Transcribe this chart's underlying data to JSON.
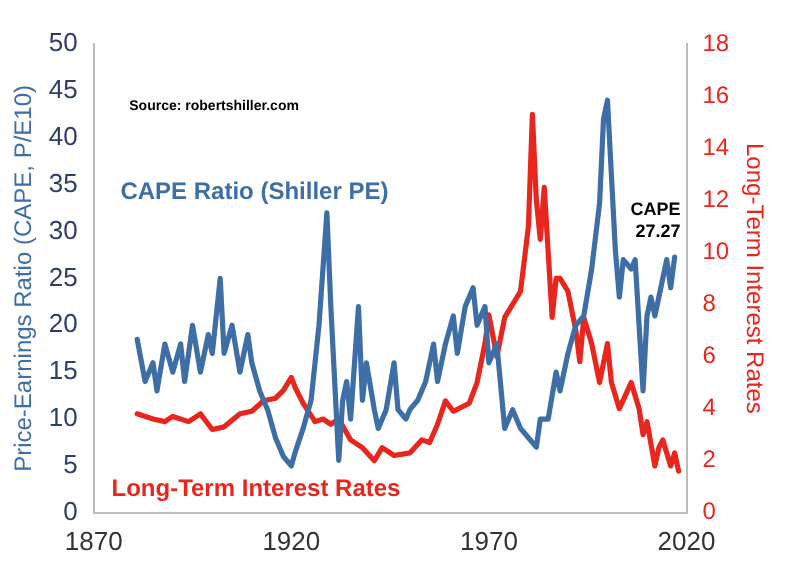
{
  "chart_data": {
    "type": "line",
    "xlim": [
      1870,
      2020
    ],
    "xticks": [
      1870,
      1920,
      1970,
      2020
    ],
    "ylabel": "Price-Earnings Ratio (CAPE, P/E10)",
    "ylim": [
      0,
      50
    ],
    "yticks": [
      0,
      5,
      10,
      15,
      20,
      25,
      30,
      35,
      40,
      45,
      50
    ],
    "y2label": "Long-Term Interest Rates",
    "y2lim": [
      0,
      18
    ],
    "y2ticks": [
      0,
      2,
      4,
      6,
      8,
      10,
      12,
      14,
      16,
      18
    ],
    "grid": false,
    "legend": false,
    "marker": "none",
    "line_style": "solid",
    "annotations": [
      "Source: robertshiller.com",
      {
        "text": "CAPE 27.27",
        "x": 2017,
        "y": 27.27
      }
    ],
    "series": [
      {
        "name": "CAPE Ratio (Shiller PE)",
        "color": "#3d6fa6",
        "x": [
          1881,
          1883,
          1885,
          1886,
          1888,
          1890,
          1892,
          1893,
          1895,
          1897,
          1899,
          1900,
          1901,
          1902,
          1903,
          1905,
          1907,
          1909,
          1910,
          1912,
          1914,
          1916,
          1918,
          1920,
          1921,
          1923,
          1925,
          1927,
          1929,
          1930,
          1932,
          1933,
          1934,
          1935,
          1937,
          1938,
          1939,
          1941,
          1942,
          1944,
          1946,
          1947,
          1949,
          1950,
          1952,
          1954,
          1956,
          1957,
          1959,
          1961,
          1962,
          1964,
          1966,
          1967,
          1969,
          1970,
          1972,
          1974,
          1976,
          1978,
          1980,
          1982,
          1983,
          1985,
          1987,
          1988,
          1990,
          1992,
          1994,
          1996,
          1998,
          1999,
          2000,
          2001,
          2002,
          2003,
          2004,
          2006,
          2007,
          2008,
          2009,
          2010,
          2011,
          2012,
          2014,
          2015,
          2016,
          2017
        ],
        "values": [
          18.5,
          14,
          16,
          13,
          18,
          15,
          18,
          14,
          20,
          15,
          19,
          17,
          21,
          25,
          17,
          20,
          15,
          19,
          16,
          13,
          11,
          8,
          6,
          5,
          6.5,
          9,
          12,
          20,
          32,
          22,
          5.6,
          12,
          14,
          10,
          22,
          12,
          16,
          11,
          9,
          11,
          16,
          11,
          10,
          11,
          12,
          14,
          18,
          14,
          18,
          21,
          17,
          22,
          24,
          20,
          22,
          16,
          18,
          9,
          11,
          9,
          8,
          7,
          10,
          10,
          15,
          13,
          17,
          20,
          21,
          26,
          33,
          42,
          44,
          36,
          28,
          23,
          27,
          26,
          27,
          20,
          13,
          21,
          23,
          21,
          25,
          27,
          24,
          27.27
        ]
      },
      {
        "name": "Long-Term Interest Rates",
        "color": "#e8261d",
        "axis": "y2",
        "x": [
          1881,
          1885,
          1888,
          1890,
          1894,
          1897,
          1900,
          1903,
          1907,
          1910,
          1913,
          1916,
          1918,
          1920,
          1921,
          1923,
          1926,
          1928,
          1930,
          1932,
          1935,
          1938,
          1941,
          1943,
          1946,
          1950,
          1953,
          1955,
          1957,
          1959,
          1961,
          1965,
          1967,
          1969,
          1970,
          1972,
          1974,
          1976,
          1978,
          1980,
          1981,
          1982,
          1983,
          1984,
          1985,
          1986,
          1987,
          1988,
          1990,
          1992,
          1993,
          1994,
          1996,
          1998,
          2000,
          2001,
          2003,
          2006,
          2008,
          2009,
          2010,
          2012,
          2013,
          2014,
          2016,
          2017,
          2018
        ],
        "values": [
          3.8,
          3.6,
          3.5,
          3.7,
          3.5,
          3.8,
          3.2,
          3.3,
          3.8,
          3.9,
          4.3,
          4.4,
          4.7,
          5.2,
          4.8,
          4.2,
          3.5,
          3.6,
          3.4,
          3.6,
          2.8,
          2.5,
          2,
          2.5,
          2.2,
          2.3,
          2.8,
          2.7,
          3.4,
          4.3,
          3.9,
          4.2,
          5,
          6.5,
          7.6,
          6,
          7.5,
          8,
          8.5,
          11,
          15.3,
          12,
          10.5,
          12.5,
          10,
          7.5,
          9,
          9,
          8.5,
          7,
          5.8,
          7.5,
          6.5,
          5,
          6.5,
          5,
          4,
          5,
          4,
          3,
          3.5,
          1.8,
          2.5,
          2.8,
          1.8,
          2.3,
          1.6
        ]
      }
    ]
  }
}
